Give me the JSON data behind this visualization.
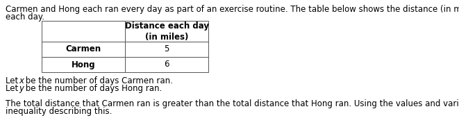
{
  "intro_text_line1": "Carmen and Hong each ran every day as part of an exercise routine. The table below shows the distance (in miles) each of them ran",
  "intro_text_line2": "each day.",
  "table_header_line1": "Distance each day",
  "table_header_line2": "(in miles)",
  "row1_label": "Carmen",
  "row1_value": "5",
  "row2_label": "Hong",
  "row2_value": "6",
  "let_line1_pre": "Let ",
  "let_line1_var": "x",
  "let_line1_post": " be the number of days Carmen ran.",
  "let_line2_pre": "Let ",
  "let_line2_var": "y",
  "let_line2_post": " be the number of days Hong ran.",
  "footer_line1": "The total distance that Carmen ran is greater than the total distance that Hong ran. Using the values and variables given, write an",
  "footer_line2": "inequality describing this.",
  "bg_color": "#ffffff",
  "text_color": "#000000",
  "font_size": 8.5
}
